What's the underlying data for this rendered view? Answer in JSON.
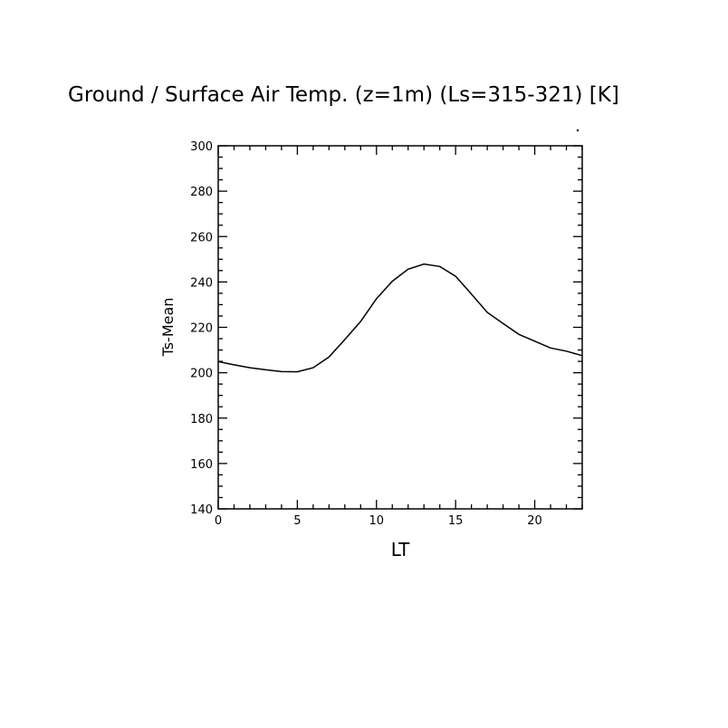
{
  "chart_data": {
    "type": "line",
    "title": "Ground / Surface Air Temp. (z=1m) (Ls=315-321) [K]",
    "xlabel": "LT",
    "ylabel": "Ts-Mean",
    "xlim": [
      0,
      23
    ],
    "ylim": [
      140,
      300
    ],
    "xticks": [
      0,
      5,
      10,
      15,
      20
    ],
    "yticks": [
      140,
      160,
      180,
      200,
      220,
      240,
      260,
      280,
      300
    ],
    "grid": false,
    "line_color": "#000000",
    "x": [
      0,
      1,
      2,
      3,
      4,
      5,
      6,
      7,
      8,
      9,
      10,
      11,
      12,
      13,
      14,
      15,
      16,
      17,
      18,
      19,
      20,
      21,
      22,
      23
    ],
    "values": [
      204.9,
      203.5,
      202.2,
      201.3,
      200.5,
      200.4,
      202.2,
      206.9,
      214.6,
      222.6,
      232.6,
      240.3,
      245.6,
      247.9,
      246.8,
      242.5,
      234.6,
      226.6,
      221.7,
      216.9,
      213.9,
      210.9,
      209.5,
      207.5
    ]
  }
}
